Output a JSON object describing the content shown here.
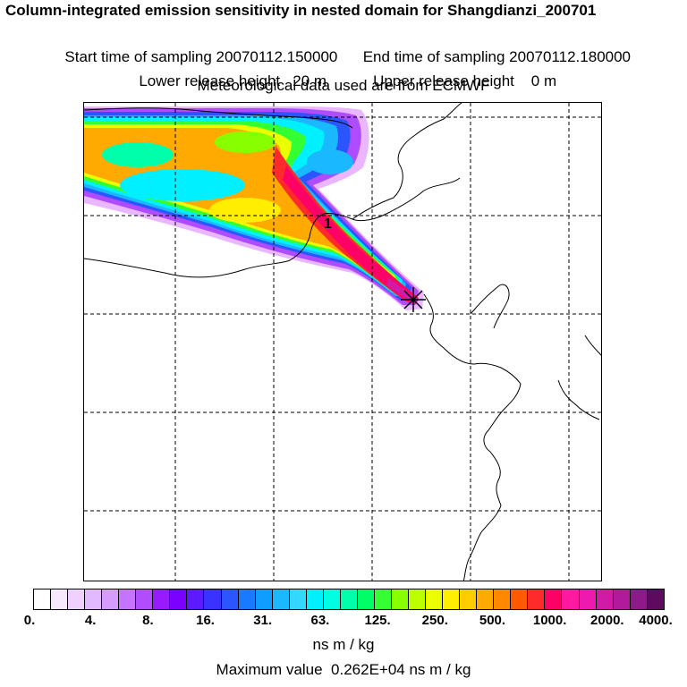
{
  "header": {
    "title": "Column-integrated emission sensitivity in nested domain for Shangdianzi_200701",
    "start_label": "Start time of sampling 20070112.150000",
    "end_label": "End time of sampling 20070112.180000",
    "lower_label": "Lower release height   20 m",
    "upper_label": "Upper release height    0 m",
    "met_label": "Meteorological data used are from ECMWF"
  },
  "map": {
    "marker_label": "1",
    "release_site_marker": "star-cross"
  },
  "legend": {
    "ticks": [
      "0.",
      "4.",
      "8.",
      "16.",
      "31.",
      "63.",
      "125.",
      "250.",
      "500.",
      "1000.",
      "2000.",
      "4000."
    ],
    "colors": [
      "#ffffff",
      "#f7e8ff",
      "#eed1ff",
      "#e2b8ff",
      "#d69bff",
      "#c673ff",
      "#b24cff",
      "#9a1aff",
      "#7a00ff",
      "#5c1aff",
      "#3a33ff",
      "#2b55ff",
      "#1a7aff",
      "#0f9dff",
      "#1ab8ff",
      "#33d8ff",
      "#00f0ff",
      "#00ffe0",
      "#00ffaa",
      "#00ff66",
      "#33ff33",
      "#88ff00",
      "#bbff00",
      "#eaff00",
      "#ffee00",
      "#ffcc00",
      "#ffaa00",
      "#ff8800",
      "#ff5a00",
      "#ff2a2a",
      "#ff0066",
      "#ff1aa0",
      "#ee1ab0",
      "#d11aa8",
      "#b01a9b",
      "#8e1a8a",
      "#5e0a5e"
    ],
    "units": "ns m / kg",
    "max_value": "Maximum value  0.262E+04 ns m / kg"
  }
}
